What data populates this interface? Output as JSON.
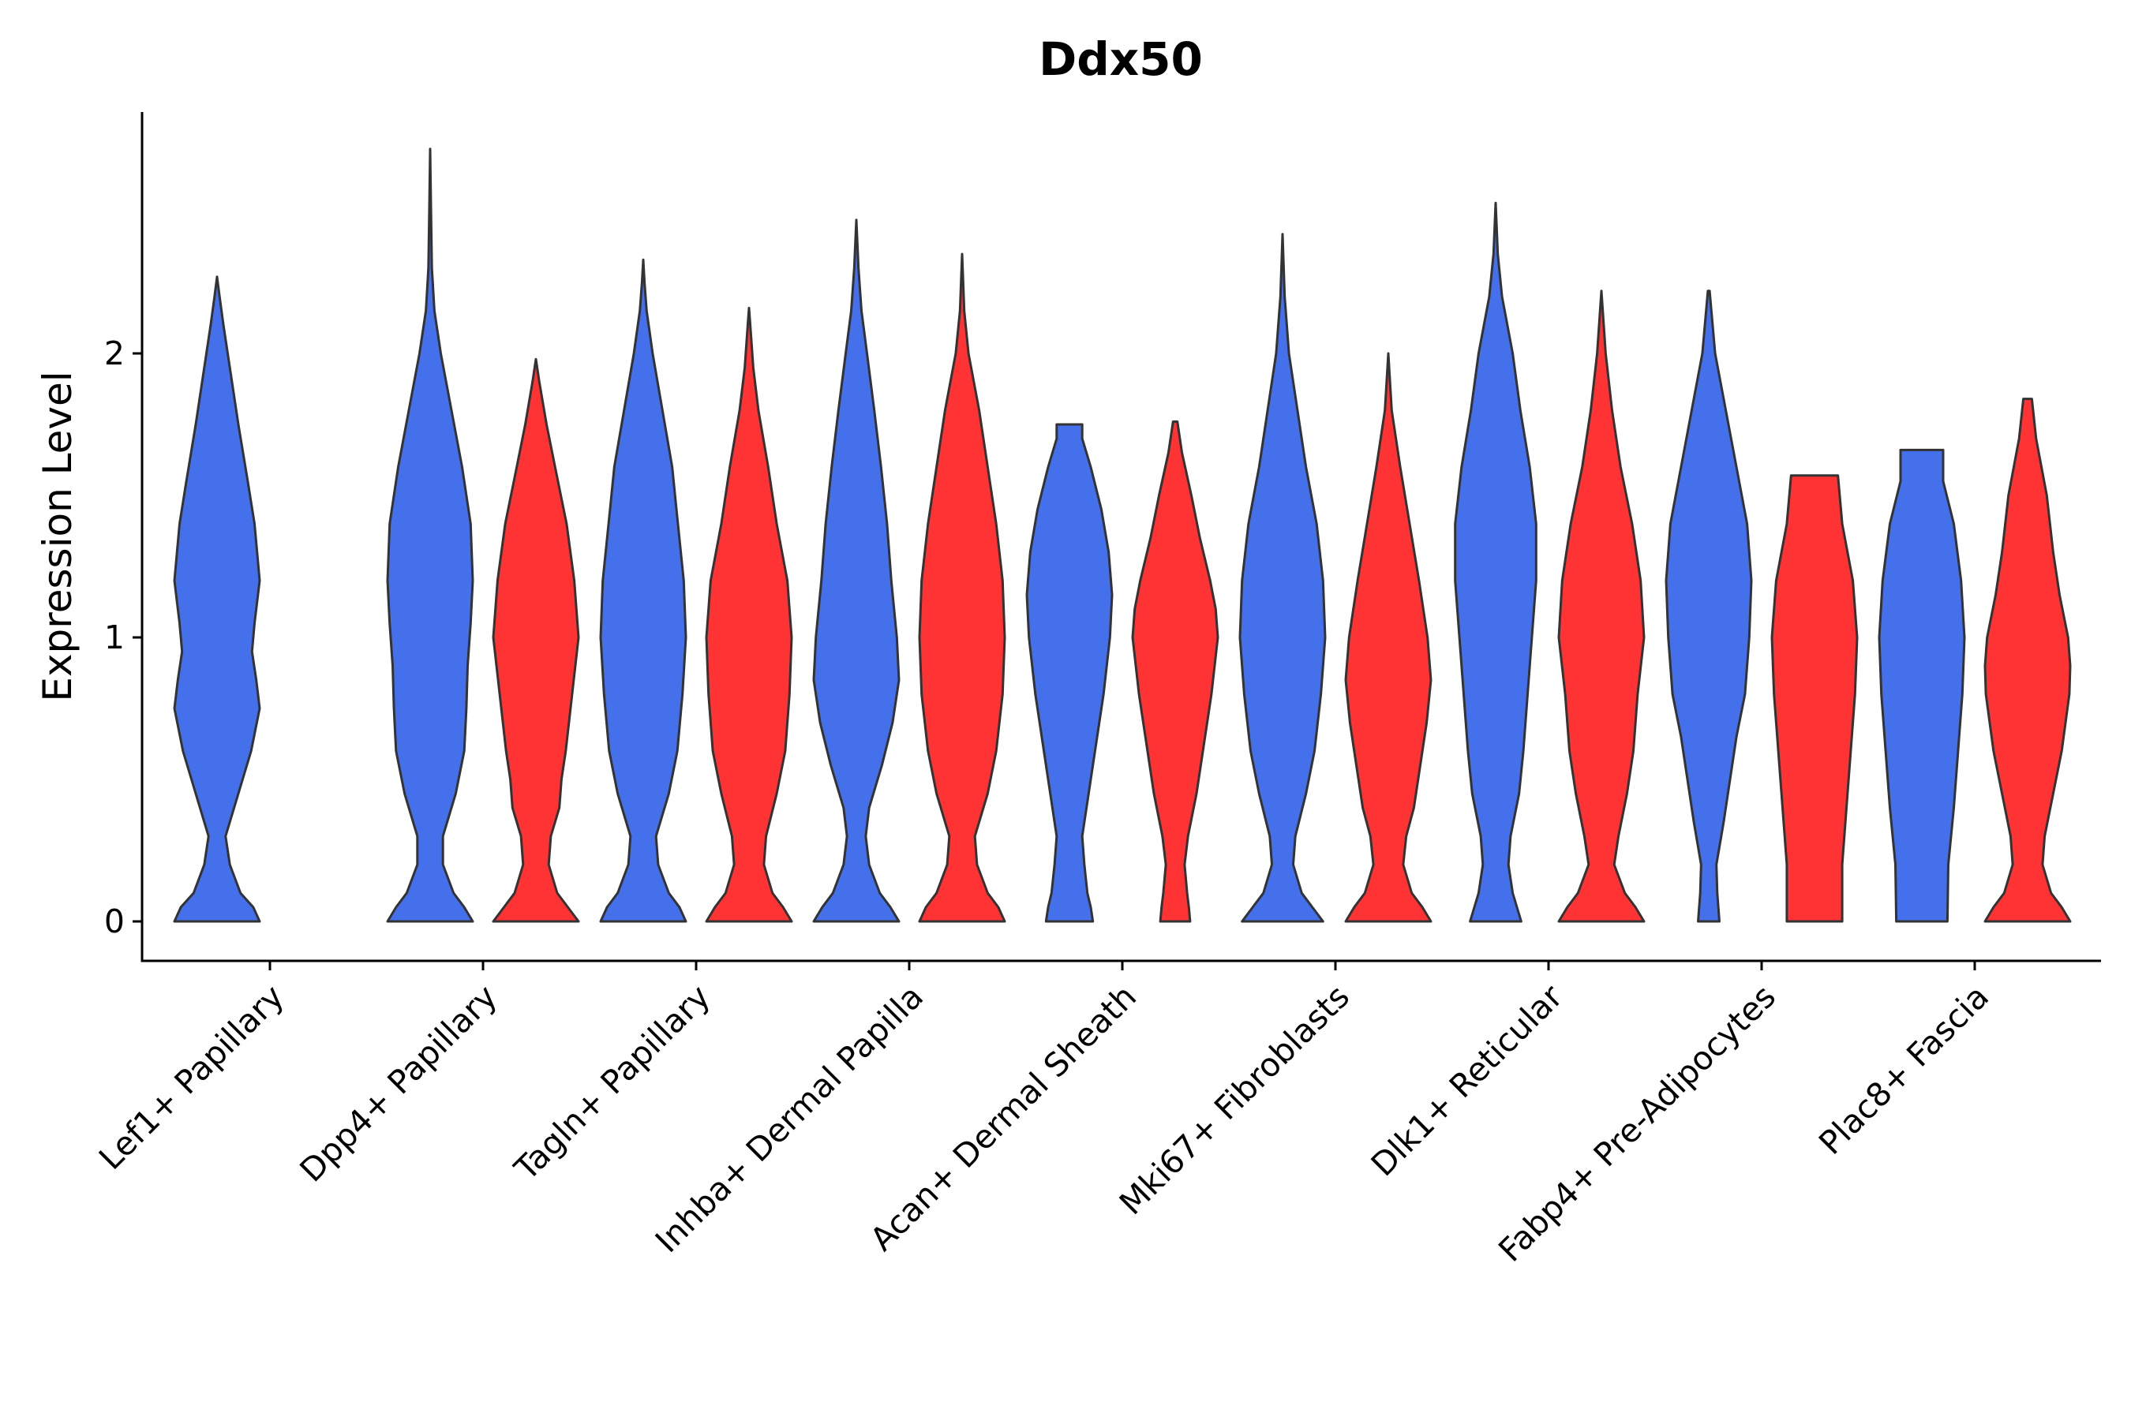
{
  "chart_data": {
    "type": "violin",
    "title": "Ddx50",
    "xlabel": "",
    "ylabel": "Expression Level",
    "ylim": [
      -0.14,
      2.85
    ],
    "yticks": [
      0,
      1,
      2
    ],
    "series": [
      {
        "name": "group 1",
        "color": "#4470EB"
      },
      {
        "name": "group 2",
        "color": "#FF3333"
      }
    ],
    "categories": [
      "Lef1+ Papillary",
      "Dpp4+ Papillary",
      "Tagln+ Papillary",
      "Inhba+ Dermal Papilla",
      "Acan+ Dermal Sheath",
      "Mki67+ Fibroblasts",
      "Dlk1+ Reticular",
      "Fabp4+ Pre-Adipocytes",
      "Plac8+ Fascia"
    ],
    "violins": [
      {
        "category": 0,
        "series": 0,
        "max": 2.27,
        "y": [
          0,
          0.05,
          0.1,
          0.2,
          0.3,
          0.45,
          0.6,
          0.75,
          0.85,
          0.95,
          1.05,
          1.2,
          1.4,
          1.55,
          1.75,
          1.95,
          2.1,
          2.2,
          2.27
        ],
        "w": [
          1,
          0.85,
          0.55,
          0.3,
          0.2,
          0.5,
          0.8,
          1,
          0.92,
          0.82,
          0.88,
          1,
          0.88,
          0.72,
          0.5,
          0.3,
          0.15,
          0.06,
          0
        ]
      },
      {
        "category": 1,
        "series": 0,
        "max": 2.72,
        "y": [
          0,
          0.05,
          0.1,
          0.2,
          0.3,
          0.45,
          0.6,
          0.75,
          0.9,
          1.05,
          1.2,
          1.4,
          1.6,
          1.8,
          2.0,
          2.15,
          2.3,
          2.5,
          2.72
        ],
        "w": [
          1,
          0.8,
          0.55,
          0.3,
          0.3,
          0.6,
          0.8,
          0.85,
          0.88,
          0.95,
          1,
          0.95,
          0.75,
          0.5,
          0.25,
          0.1,
          0.04,
          0.02,
          0
        ]
      },
      {
        "category": 1,
        "series": 1,
        "max": 1.98,
        "y": [
          0,
          0.05,
          0.1,
          0.2,
          0.3,
          0.4,
          0.5,
          0.6,
          0.8,
          1.0,
          1.2,
          1.4,
          1.6,
          1.75,
          1.9,
          1.98
        ],
        "w": [
          1,
          0.75,
          0.5,
          0.3,
          0.35,
          0.55,
          0.6,
          0.7,
          0.85,
          1,
          0.9,
          0.72,
          0.45,
          0.25,
          0.08,
          0
        ]
      },
      {
        "category": 2,
        "series": 0,
        "max": 2.33,
        "y": [
          0,
          0.05,
          0.1,
          0.2,
          0.3,
          0.45,
          0.6,
          0.8,
          1.0,
          1.2,
          1.45,
          1.6,
          1.8,
          2.0,
          2.15,
          2.25,
          2.33
        ],
        "w": [
          1,
          0.85,
          0.6,
          0.35,
          0.3,
          0.6,
          0.8,
          0.92,
          1,
          0.95,
          0.78,
          0.68,
          0.45,
          0.22,
          0.08,
          0.03,
          0
        ]
      },
      {
        "category": 2,
        "series": 1,
        "max": 2.16,
        "y": [
          0,
          0.05,
          0.1,
          0.2,
          0.3,
          0.45,
          0.6,
          0.8,
          1.0,
          1.2,
          1.4,
          1.6,
          1.8,
          1.95,
          2.1,
          2.16
        ],
        "w": [
          1,
          0.8,
          0.55,
          0.35,
          0.4,
          0.65,
          0.85,
          0.95,
          1,
          0.9,
          0.65,
          0.45,
          0.22,
          0.1,
          0.03,
          0
        ]
      },
      {
        "category": 3,
        "series": 0,
        "max": 2.47,
        "y": [
          0,
          0.05,
          0.1,
          0.2,
          0.3,
          0.4,
          0.55,
          0.7,
          0.85,
          1.0,
          1.2,
          1.4,
          1.6,
          1.8,
          2.0,
          2.15,
          2.3,
          2.47
        ],
        "w": [
          1,
          0.8,
          0.55,
          0.3,
          0.22,
          0.3,
          0.6,
          0.85,
          1,
          0.95,
          0.82,
          0.72,
          0.58,
          0.42,
          0.25,
          0.12,
          0.05,
          0
        ]
      },
      {
        "category": 3,
        "series": 1,
        "max": 2.35,
        "y": [
          0,
          0.05,
          0.1,
          0.2,
          0.3,
          0.45,
          0.6,
          0.8,
          1.0,
          1.2,
          1.4,
          1.6,
          1.8,
          2.0,
          2.15,
          2.35
        ],
        "w": [
          1,
          0.85,
          0.6,
          0.35,
          0.3,
          0.6,
          0.8,
          0.95,
          1,
          0.95,
          0.8,
          0.6,
          0.4,
          0.15,
          0.05,
          0
        ]
      },
      {
        "category": 4,
        "series": 0,
        "max": 1.75,
        "y": [
          0,
          0.05,
          0.1,
          0.2,
          0.3,
          0.45,
          0.6,
          0.8,
          1.0,
          1.15,
          1.3,
          1.45,
          1.6,
          1.7,
          1.75
        ],
        "w": [
          0.55,
          0.5,
          0.42,
          0.35,
          0.3,
          0.45,
          0.6,
          0.8,
          0.95,
          1,
          0.92,
          0.75,
          0.5,
          0.3,
          0.3
        ]
      },
      {
        "category": 4,
        "series": 1,
        "max": 1.76,
        "y": [
          0,
          0.05,
          0.1,
          0.2,
          0.3,
          0.45,
          0.6,
          0.8,
          1.0,
          1.1,
          1.2,
          1.35,
          1.5,
          1.65,
          1.76
        ],
        "w": [
          0.35,
          0.32,
          0.28,
          0.22,
          0.3,
          0.5,
          0.65,
          0.85,
          1,
          0.95,
          0.82,
          0.58,
          0.38,
          0.16,
          0.05
        ]
      },
      {
        "category": 5,
        "series": 0,
        "max": 2.42,
        "y": [
          0,
          0.05,
          0.1,
          0.2,
          0.3,
          0.45,
          0.6,
          0.8,
          1.0,
          1.2,
          1.4,
          1.6,
          1.8,
          2.0,
          2.2,
          2.42
        ],
        "w": [
          0.95,
          0.7,
          0.45,
          0.25,
          0.3,
          0.55,
          0.75,
          0.9,
          1,
          0.95,
          0.8,
          0.55,
          0.35,
          0.15,
          0.05,
          0
        ]
      },
      {
        "category": 5,
        "series": 1,
        "max": 2.0,
        "y": [
          0,
          0.05,
          0.1,
          0.2,
          0.3,
          0.4,
          0.55,
          0.7,
          0.85,
          1.0,
          1.2,
          1.4,
          1.6,
          1.8,
          2.0
        ],
        "w": [
          1,
          0.8,
          0.55,
          0.35,
          0.42,
          0.6,
          0.75,
          0.9,
          1,
          0.92,
          0.72,
          0.5,
          0.28,
          0.08,
          0
        ]
      },
      {
        "category": 6,
        "series": 0,
        "max": 2.53,
        "y": [
          0,
          0.05,
          0.1,
          0.2,
          0.3,
          0.45,
          0.6,
          0.8,
          1.0,
          1.2,
          1.4,
          1.6,
          1.8,
          2.0,
          2.2,
          2.35,
          2.53
        ],
        "w": [
          0.6,
          0.5,
          0.4,
          0.3,
          0.35,
          0.55,
          0.65,
          0.75,
          0.85,
          0.95,
          0.95,
          0.8,
          0.58,
          0.4,
          0.15,
          0.05,
          0
        ]
      },
      {
        "category": 6,
        "series": 1,
        "max": 2.22,
        "y": [
          0,
          0.05,
          0.1,
          0.2,
          0.3,
          0.45,
          0.6,
          0.8,
          1.0,
          1.2,
          1.4,
          1.6,
          1.8,
          2.0,
          2.22
        ],
        "w": [
          1,
          0.8,
          0.55,
          0.3,
          0.4,
          0.6,
          0.75,
          0.85,
          1,
          0.92,
          0.72,
          0.45,
          0.25,
          0.1,
          0
        ]
      },
      {
        "category": 7,
        "series": 0,
        "max": 2.22,
        "y": [
          0,
          0.1,
          0.2,
          0.35,
          0.5,
          0.65,
          0.8,
          1.0,
          1.2,
          1.4,
          1.6,
          1.8,
          2.0,
          2.22
        ],
        "w": [
          0.25,
          0.2,
          0.18,
          0.35,
          0.5,
          0.65,
          0.85,
          0.95,
          1,
          0.9,
          0.65,
          0.4,
          0.15,
          0.02
        ]
      },
      {
        "category": 7,
        "series": 1,
        "max": 1.57,
        "y": [
          0,
          0.2,
          0.4,
          0.6,
          0.8,
          1.0,
          1.2,
          1.4,
          1.57
        ],
        "w": [
          0.65,
          0.65,
          0.75,
          0.85,
          0.95,
          1,
          0.9,
          0.65,
          0.55
        ]
      },
      {
        "category": 8,
        "series": 0,
        "max": 1.66,
        "y": [
          0,
          0.2,
          0.4,
          0.6,
          0.8,
          1.0,
          1.2,
          1.4,
          1.55,
          1.66
        ],
        "w": [
          0.6,
          0.62,
          0.75,
          0.85,
          0.95,
          1,
          0.92,
          0.75,
          0.5,
          0.5
        ]
      },
      {
        "category": 8,
        "series": 1,
        "max": 1.84,
        "y": [
          0,
          0.05,
          0.1,
          0.2,
          0.3,
          0.45,
          0.6,
          0.8,
          0.9,
          1.0,
          1.15,
          1.3,
          1.5,
          1.7,
          1.84
        ],
        "w": [
          1,
          0.8,
          0.55,
          0.35,
          0.4,
          0.6,
          0.8,
          0.98,
          1,
          0.95,
          0.75,
          0.6,
          0.45,
          0.2,
          0.1
        ]
      }
    ]
  }
}
